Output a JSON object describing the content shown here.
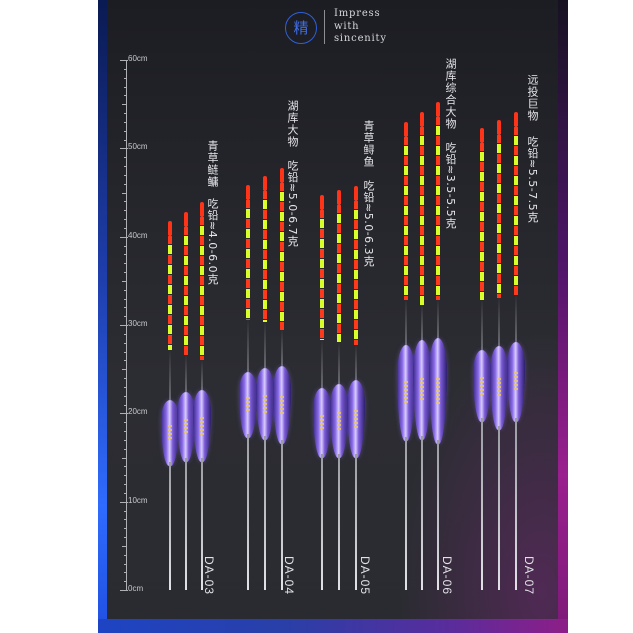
{
  "brand": {
    "seal_char": "精",
    "slogan_lines": [
      "Impress",
      "with",
      "sincenity"
    ]
  },
  "ruler": {
    "unit": "cm",
    "labels": [
      "60cm",
      "50cm",
      "40cm",
      "30cm",
      "20cm",
      "10cm",
      "0cm"
    ]
  },
  "groups": [
    {
      "id": "da-03",
      "name": "青草鲢鳙",
      "lead_spec": "吃铅≈4.0-6.0克",
      "model": "DA-03"
    },
    {
      "id": "da-04",
      "name": "湖库大物",
      "lead_spec": "吃铅≈5.0-6.7克",
      "model": "DA-04"
    },
    {
      "id": "da-05",
      "name": "青草鲟鱼",
      "lead_spec": "吃铅≈5.0-6.3克",
      "model": "DA-05"
    },
    {
      "id": "da-06",
      "name": "湖库综合大物",
      "lead_spec": "吃铅≈3.5-5.5克",
      "model": "DA-06"
    },
    {
      "id": "da-07",
      "name": "远投巨物",
      "lead_spec": "吃铅≈5.5-7.5克",
      "model": "DA-07"
    }
  ],
  "colors": {
    "left_edge_blue": "#2f6bff",
    "right_edge_magenta": "#9a1f8f",
    "tip_red": "#ff3a1c",
    "tip_yellow": "#d8ff2a",
    "body_purple": "#8a6be8"
  }
}
